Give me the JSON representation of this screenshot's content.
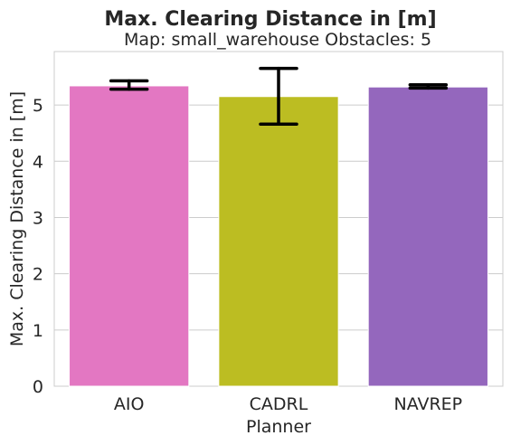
{
  "chart_data": {
    "type": "bar",
    "title": "Max. Clearing Distance in [m]",
    "subtitle": "Map: small_warehouse Obstacles: 5",
    "xlabel": "Planner",
    "ylabel": "Max. Clearing Distance in [m]",
    "categories": [
      "AIO",
      "CADRL",
      "NAVREP"
    ],
    "values": [
      5.34,
      5.15,
      5.32
    ],
    "error_low": [
      5.28,
      4.66,
      5.3
    ],
    "error_high": [
      5.43,
      5.65,
      5.36
    ],
    "colors": [
      "#e377c2",
      "#bcbd22",
      "#9467bd"
    ],
    "ylim": [
      0,
      5.95
    ],
    "yticks": [
      "0",
      "1",
      "2",
      "3",
      "4",
      "5"
    ],
    "grid": "horizontal"
  }
}
